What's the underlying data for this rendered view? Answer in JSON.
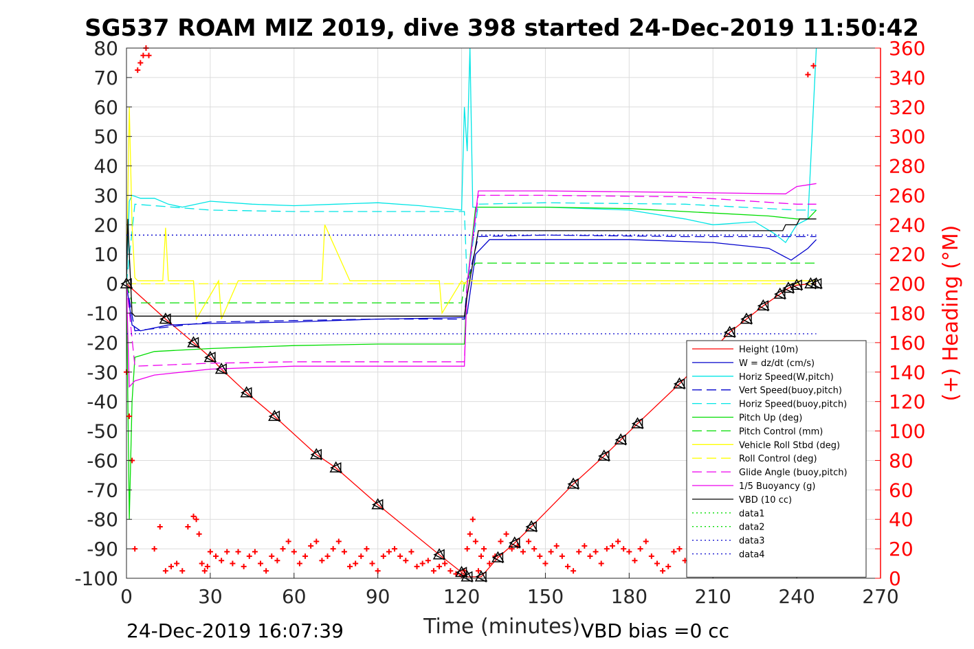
{
  "chart_data": {
    "type": "line",
    "title": "SG537 ROAM MIZ 2019, dive 398 started 24-Dec-2019 11:50:42",
    "xlabel": "Time (minutes)",
    "ylabel_right": "(+) Heading (°M)",
    "xlim": [
      0,
      270
    ],
    "ylim": [
      -100,
      80
    ],
    "ylim_right": [
      0,
      360
    ],
    "x_ticks": [
      "0",
      "30",
      "60",
      "90",
      "120",
      "150",
      "180",
      "210",
      "240",
      "270"
    ],
    "y_ticks": [
      "80",
      "70",
      "60",
      "50",
      "40",
      "30",
      "20",
      "10",
      "0",
      "-10",
      "-20",
      "-30",
      "-40",
      "-50",
      "-60",
      "-70",
      "-80",
      "-90",
      "-100"
    ],
    "y_ticks_right": [
      "360",
      "340",
      "320",
      "300",
      "280",
      "260",
      "240",
      "220",
      "200",
      "180",
      "160",
      "140",
      "120",
      "100",
      "80",
      "60",
      "40",
      "20",
      "0"
    ],
    "grid": true,
    "legend_position": "lower-right",
    "series": [
      {
        "name": "Height (10m)",
        "color": "#ff0000",
        "style": "solid",
        "x": [
          0,
          14,
          24,
          30,
          34,
          43,
          53,
          68,
          75,
          90,
          112,
          120,
          122,
          127,
          133,
          139,
          145,
          160,
          171,
          177,
          183,
          198,
          216,
          222,
          228,
          234,
          237,
          240,
          245,
          247
        ],
        "y": [
          0,
          -12,
          -20,
          -25,
          -29,
          -37,
          -45,
          -58,
          -62.5,
          -75,
          -92,
          -98,
          -99.5,
          -99.5,
          -93,
          -88,
          -82.5,
          -68,
          -58.5,
          -53,
          -47.5,
          -34,
          -16.5,
          -12,
          -7.5,
          -3.5,
          -1.5,
          -0.5,
          0,
          0
        ]
      },
      {
        "name": "W = dz/dt (cm/s)",
        "color": "#0000cc",
        "style": "solid",
        "x": [
          0,
          2,
          5,
          15,
          30,
          60,
          90,
          121,
          122,
          125,
          130,
          150,
          180,
          210,
          230,
          238,
          244,
          247
        ],
        "y": [
          0,
          -14,
          -16,
          -14,
          -13.5,
          -13,
          -12,
          -11.5,
          -10,
          10,
          15,
          15,
          15,
          14,
          12,
          8,
          12,
          15
        ]
      },
      {
        "name": "Horiz Speed(W,pitch)",
        "color": "#00e5e5",
        "style": "solid",
        "x": [
          0,
          1,
          2,
          5,
          10,
          15,
          20,
          30,
          45,
          60,
          75,
          90,
          105,
          110,
          120,
          121,
          122,
          123,
          124,
          127,
          150,
          180,
          200,
          210,
          225,
          232,
          236,
          240,
          244,
          247
        ],
        "y": [
          0,
          28,
          30,
          29,
          29,
          27,
          26,
          28,
          27,
          26.5,
          27,
          27.5,
          26.5,
          26,
          25,
          60,
          45,
          80,
          26,
          26,
          26,
          25,
          22,
          20,
          21,
          17,
          14,
          20,
          22,
          80
        ]
      },
      {
        "name": "Vert Speed(buoy,pitch)",
        "color": "#0000cc",
        "style": "dashed",
        "x": [
          0,
          3,
          30,
          60,
          90,
          121,
          122,
          126,
          150,
          200,
          247
        ],
        "y": [
          0,
          -16,
          -13,
          -12.5,
          -12,
          -12,
          0,
          16,
          16.5,
          16,
          16
        ]
      },
      {
        "name": "Horiz Speed(buoy,pitch)",
        "color": "#00e5e5",
        "style": "dashed",
        "x": [
          0,
          3,
          30,
          60,
          90,
          121,
          122,
          126,
          150,
          200,
          240,
          247
        ],
        "y": [
          0,
          27,
          25,
          24.5,
          24.5,
          24.5,
          0,
          27,
          27.5,
          27,
          25,
          25
        ]
      },
      {
        "name": "Pitch Up (deg)",
        "color": "#00dd00",
        "style": "solid",
        "x": [
          0,
          1,
          2,
          3,
          10,
          30,
          60,
          90,
          121,
          122,
          125,
          150,
          180,
          210,
          230,
          240,
          244,
          247
        ],
        "y": [
          0,
          -80,
          -40,
          -25,
          -23,
          -22,
          -21,
          -20.5,
          -20.5,
          0,
          26,
          26,
          25.5,
          24,
          23,
          22,
          22,
          25
        ]
      },
      {
        "name": "Pitch Control (mm)",
        "color": "#00dd00",
        "style": "dashed",
        "x": [
          0,
          2,
          120,
          121,
          125,
          247
        ],
        "y": [
          0,
          -6.5,
          -6.5,
          0,
          7,
          7
        ]
      },
      {
        "name": "Vehicle Roll Stbd (deg)",
        "color": "#ffff00",
        "style": "solid",
        "x": [
          0,
          1,
          2,
          3,
          4,
          5,
          13,
          14,
          15,
          24,
          25,
          33,
          34,
          40,
          50,
          60,
          70,
          71,
          80,
          90,
          100,
          112,
          113,
          120,
          121,
          122,
          126,
          130,
          140,
          150,
          160,
          170,
          180,
          190,
          200,
          210,
          220,
          230,
          240,
          245,
          247
        ],
        "y": [
          0,
          60,
          20,
          2,
          1,
          1,
          1,
          19,
          1,
          1,
          -12,
          1,
          -12,
          1,
          1,
          1,
          1,
          20,
          1,
          1,
          1,
          1,
          -10,
          1,
          0,
          1,
          1,
          1,
          1,
          1,
          1,
          1,
          1,
          1,
          1,
          1,
          1,
          1,
          1,
          1,
          1
        ]
      },
      {
        "name": "Roll Control (deg)",
        "color": "#ffff00",
        "style": "dashed",
        "x": [
          0,
          247
        ],
        "y": [
          0,
          0
        ]
      },
      {
        "name": "Glide Angle (buoy,pitch)",
        "color": "#ee00ee",
        "style": "dashed",
        "x": [
          0,
          3,
          30,
          60,
          90,
          121,
          122,
          126,
          150,
          200,
          240,
          247
        ],
        "y": [
          0,
          -28,
          -27,
          -26.5,
          -26.5,
          -26.5,
          0,
          30,
          30,
          29.5,
          27,
          27
        ]
      },
      {
        "name": "1/5 Buoyancy (g)",
        "color": "#ee00ee",
        "style": "solid",
        "x": [
          0,
          1,
          3,
          10,
          20,
          30,
          60,
          90,
          121,
          122,
          126,
          150,
          200,
          236,
          240,
          247
        ],
        "y": [
          0,
          -35,
          -33,
          -31,
          -30,
          -29,
          -28,
          -28,
          -28,
          0,
          31.5,
          31.5,
          31,
          30.5,
          33,
          34
        ]
      },
      {
        "name": "VBD (10 cc)",
        "color": "#000000",
        "style": "solid",
        "x": [
          0,
          0.5,
          1,
          2,
          3,
          121,
          122,
          126,
          127,
          235,
          236,
          240,
          241,
          247
        ],
        "y": [
          0,
          22,
          10,
          -10,
          -11,
          -11,
          -4,
          18,
          18,
          18,
          20,
          20,
          22,
          22
        ]
      },
      {
        "name": "data1",
        "color": "#00dd00",
        "style": "dotted",
        "x": [],
        "y": []
      },
      {
        "name": "data2",
        "color": "#00dd00",
        "style": "dotted",
        "x": [],
        "y": []
      },
      {
        "name": "data3",
        "color": "#0000cc",
        "style": "dotted",
        "x": [
          0,
          247
        ],
        "y": [
          16.5,
          16.5
        ]
      },
      {
        "name": "data4",
        "color": "#0000cc",
        "style": "dotted",
        "x": [
          0,
          247
        ],
        "y": [
          -17,
          -17
        ]
      }
    ],
    "heading_series": {
      "name": "(+) Heading (°M)",
      "color": "#ff0000",
      "marker": "+",
      "x": [
        0,
        1,
        2,
        3,
        4,
        5,
        6,
        7,
        8,
        10,
        12,
        14,
        16,
        18,
        20,
        22,
        24,
        25,
        26,
        27,
        28,
        29,
        30,
        32,
        34,
        36,
        38,
        40,
        42,
        44,
        46,
        48,
        50,
        52,
        54,
        56,
        58,
        60,
        62,
        64,
        66,
        68,
        70,
        72,
        74,
        76,
        78,
        80,
        82,
        84,
        86,
        88,
        90,
        92,
        94,
        96,
        98,
        100,
        102,
        104,
        106,
        108,
        110,
        112,
        114,
        116,
        118,
        120,
        121,
        122,
        123,
        124,
        125,
        126,
        127,
        128,
        130,
        132,
        134,
        136,
        138,
        140,
        142,
        144,
        146,
        148,
        150,
        152,
        154,
        156,
        158,
        160,
        162,
        164,
        166,
        168,
        170,
        172,
        174,
        176,
        178,
        180,
        182,
        184,
        186,
        188,
        190,
        192,
        194,
        196,
        198,
        200,
        202,
        204,
        206,
        208,
        210,
        212,
        214,
        216,
        218,
        220,
        222,
        224,
        226,
        228,
        230,
        232,
        234,
        236,
        238,
        240,
        242,
        244,
        246
      ],
      "y": [
        140,
        110,
        80,
        20,
        345,
        350,
        355,
        360,
        355,
        20,
        35,
        5,
        8,
        10,
        5,
        35,
        42,
        40,
        30,
        10,
        5,
        8,
        18,
        15,
        12,
        18,
        10,
        18,
        8,
        15,
        18,
        10,
        5,
        15,
        12,
        20,
        25,
        18,
        10,
        15,
        22,
        25,
        12,
        15,
        20,
        25,
        18,
        8,
        10,
        15,
        20,
        10,
        5,
        15,
        18,
        20,
        15,
        12,
        18,
        8,
        10,
        12,
        5,
        8,
        10,
        5,
        3,
        2,
        5,
        20,
        30,
        40,
        25,
        5,
        15,
        20,
        10,
        15,
        25,
        30,
        20,
        22,
        18,
        25,
        20,
        15,
        10,
        18,
        22,
        15,
        8,
        5,
        18,
        22,
        15,
        18,
        10,
        20,
        22,
        25,
        20,
        18,
        12,
        20,
        25,
        15,
        10,
        5,
        8,
        18,
        20,
        12,
        10,
        15,
        8,
        5,
        12,
        18,
        15,
        10,
        8,
        18,
        20,
        15,
        12,
        10,
        15,
        12,
        8,
        10,
        15,
        20,
        10,
        342,
        348
      ]
    },
    "footer_left": "24-Dec-2019 16:07:39",
    "footer_right": "VBD bias =0 cc"
  }
}
